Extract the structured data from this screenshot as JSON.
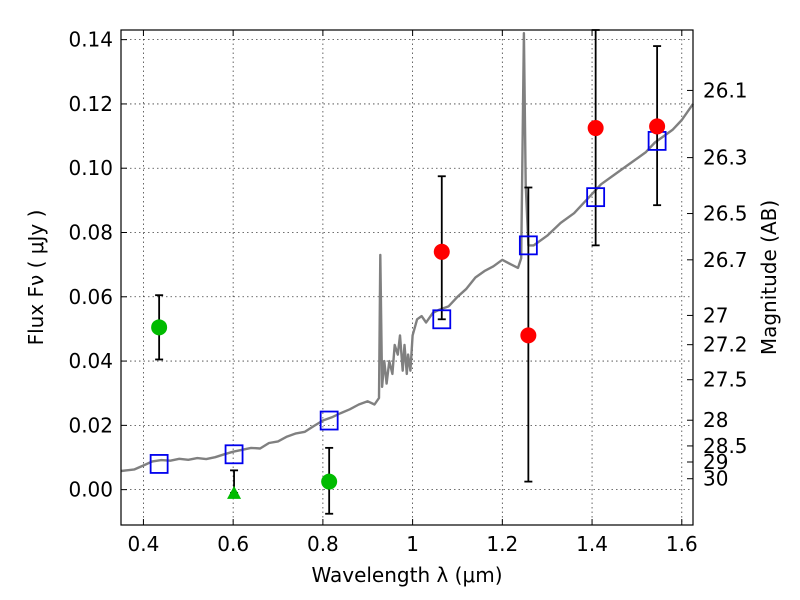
{
  "chart_data": {
    "type": "scatter",
    "xlabel": "Wavelength  λ (μm)",
    "ylabel": "Flux  Fν  ( μJy )",
    "y2label": "Magnitude (AB)",
    "xlim": [
      0.35,
      1.625
    ],
    "ylim": [
      -0.011,
      0.143
    ],
    "xticks": [
      0.4,
      0.6,
      0.8,
      1.0,
      1.2,
      1.4,
      1.6
    ],
    "xtick_labels": [
      "0.4",
      "0.6",
      "0.8",
      "1",
      "1.2",
      "1.4",
      "1.6"
    ],
    "yticks": [
      0.0,
      0.02,
      0.04,
      0.06,
      0.08,
      0.1,
      0.12,
      0.14
    ],
    "ytick_labels": [
      "0.00",
      "0.02",
      "0.04",
      "0.06",
      "0.08",
      "0.10",
      "0.12",
      "0.14"
    ],
    "y2ticks": [
      {
        "label": "26.1",
        "flux": 0.1242
      },
      {
        "label": "26.3",
        "flux": 0.1033
      },
      {
        "label": "26.5",
        "flux": 0.0859
      },
      {
        "label": "26.7",
        "flux": 0.0715
      },
      {
        "label": "27",
        "flux": 0.0542
      },
      {
        "label": "27.2",
        "flux": 0.0451
      },
      {
        "label": "27.5",
        "flux": 0.0342
      },
      {
        "label": "28",
        "flux": 0.0216
      },
      {
        "label": "28.5",
        "flux": 0.0136
      },
      {
        "label": "29",
        "flux": 0.0086
      },
      {
        "label": "30",
        "flux": 0.0034
      }
    ],
    "grid": true,
    "series": [
      {
        "kind": "line",
        "color": "#808080",
        "points": [
          [
            0.35,
            0.0058
          ],
          [
            0.38,
            0.0063
          ],
          [
            0.4,
            0.0075
          ],
          [
            0.42,
            0.0088
          ],
          [
            0.44,
            0.0092
          ],
          [
            0.46,
            0.009
          ],
          [
            0.48,
            0.0096
          ],
          [
            0.5,
            0.0093
          ],
          [
            0.52,
            0.0098
          ],
          [
            0.54,
            0.0095
          ],
          [
            0.56,
            0.0101
          ],
          [
            0.58,
            0.011
          ],
          [
            0.6,
            0.0118
          ],
          [
            0.62,
            0.0124
          ],
          [
            0.64,
            0.013
          ],
          [
            0.66,
            0.0128
          ],
          [
            0.68,
            0.0145
          ],
          [
            0.7,
            0.015
          ],
          [
            0.72,
            0.0165
          ],
          [
            0.74,
            0.0175
          ],
          [
            0.76,
            0.018
          ],
          [
            0.78,
            0.0198
          ],
          [
            0.8,
            0.0215
          ],
          [
            0.82,
            0.0225
          ],
          [
            0.84,
            0.0238
          ],
          [
            0.86,
            0.025
          ],
          [
            0.88,
            0.0265
          ],
          [
            0.9,
            0.0275
          ],
          [
            0.915,
            0.0265
          ],
          [
            0.925,
            0.0285
          ],
          [
            0.928,
            0.073
          ],
          [
            0.932,
            0.032
          ],
          [
            0.937,
            0.04
          ],
          [
            0.942,
            0.033
          ],
          [
            0.948,
            0.04
          ],
          [
            0.955,
            0.036
          ],
          [
            0.96,
            0.045
          ],
          [
            0.967,
            0.042
          ],
          [
            0.972,
            0.048
          ],
          [
            0.978,
            0.037
          ],
          [
            0.982,
            0.045
          ],
          [
            0.987,
            0.036
          ],
          [
            0.99,
            0.042
          ],
          [
            0.995,
            0.037
          ],
          [
            1.0,
            0.048
          ],
          [
            1.01,
            0.053
          ],
          [
            1.02,
            0.054
          ],
          [
            1.03,
            0.052
          ],
          [
            1.045,
            0.055
          ],
          [
            1.06,
            0.056
          ],
          [
            1.08,
            0.057
          ],
          [
            1.1,
            0.06
          ],
          [
            1.12,
            0.0625
          ],
          [
            1.14,
            0.066
          ],
          [
            1.16,
            0.068
          ],
          [
            1.18,
            0.0695
          ],
          [
            1.2,
            0.0715
          ],
          [
            1.22,
            0.07
          ],
          [
            1.235,
            0.069
          ],
          [
            1.242,
            0.072
          ],
          [
            1.248,
            0.142
          ],
          [
            1.252,
            0.095
          ],
          [
            1.258,
            0.076
          ],
          [
            1.27,
            0.076
          ],
          [
            1.3,
            0.079
          ],
          [
            1.33,
            0.083
          ],
          [
            1.36,
            0.086
          ],
          [
            1.4,
            0.092
          ],
          [
            1.42,
            0.095
          ],
          [
            1.45,
            0.098
          ],
          [
            1.48,
            0.101
          ],
          [
            1.5,
            0.103
          ],
          [
            1.52,
            0.105
          ],
          [
            1.54,
            0.108
          ],
          [
            1.56,
            0.11
          ],
          [
            1.58,
            0.112
          ],
          [
            1.6,
            0.115
          ],
          [
            1.625,
            0.12
          ]
        ]
      },
      {
        "kind": "square-marker",
        "color": "#0000ee",
        "points": [
          [
            0.435,
            0.008
          ],
          [
            0.602,
            0.011
          ],
          [
            0.814,
            0.0215
          ],
          [
            1.065,
            0.053
          ],
          [
            1.258,
            0.076
          ],
          [
            1.408,
            0.091
          ],
          [
            1.545,
            0.1085
          ]
        ]
      },
      {
        "kind": "circle-errorbar",
        "color": "#ff0000",
        "points": [
          {
            "x": 1.065,
            "y": 0.074,
            "ylo": 0.053,
            "yhi": 0.0975
          },
          {
            "x": 1.258,
            "y": 0.048,
            "ylo": 0.0025,
            "yhi": 0.094
          },
          {
            "x": 1.408,
            "y": 0.1125,
            "ylo": 0.076,
            "yhi": 0.143
          },
          {
            "x": 1.545,
            "y": 0.113,
            "ylo": 0.0885,
            "yhi": 0.138
          }
        ]
      },
      {
        "kind": "circle-errorbar",
        "color": "#00bb00",
        "points": [
          {
            "x": 0.435,
            "y": 0.0505,
            "ylo": 0.0405,
            "yhi": 0.0605
          },
          {
            "x": 0.814,
            "y": 0.0025,
            "ylo": -0.0075,
            "yhi": 0.013
          }
        ]
      },
      {
        "kind": "triangle-upper-limit",
        "color": "#00bb00",
        "points": [
          {
            "x": 0.602,
            "y": -0.001,
            "ylo": -0.001,
            "yhi": 0.006
          }
        ]
      }
    ]
  }
}
